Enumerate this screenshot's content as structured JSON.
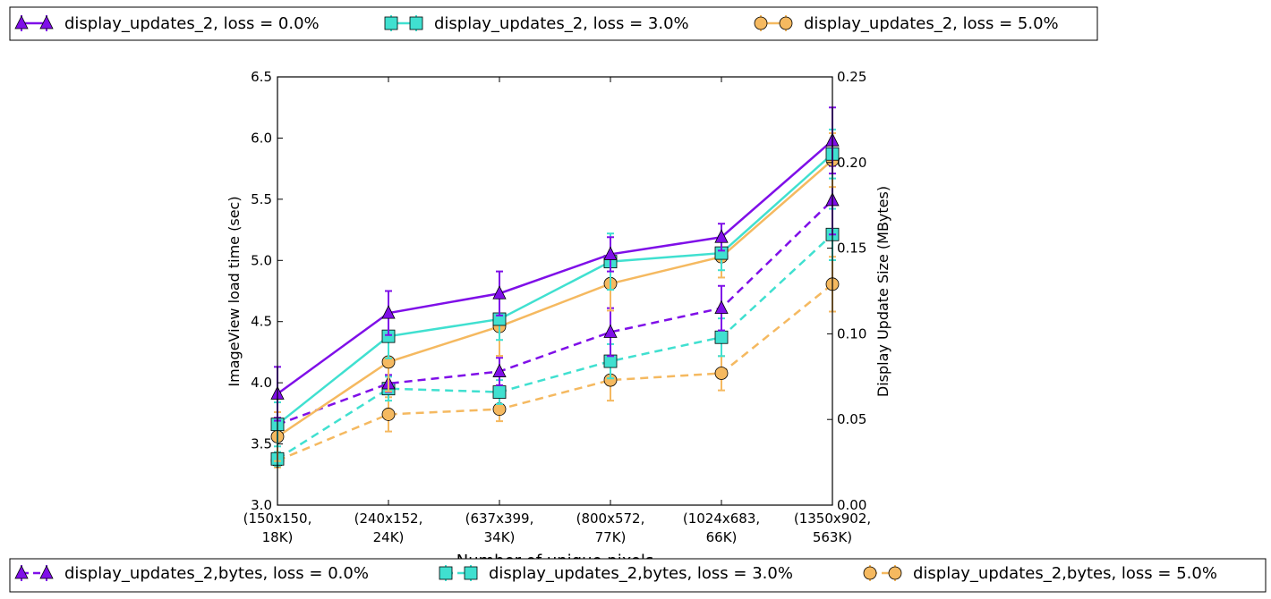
{
  "chart_data": {
    "type": "line",
    "xlabel": "Number of unique pixels",
    "ylabel_left": "ImageView load time (sec)",
    "ylabel_right": "Display Update Size (MBytes)",
    "categories": [
      [
        "(150x150,",
        "18K)"
      ],
      [
        "(240x152,",
        "24K)"
      ],
      [
        "(637x399,",
        "34K)"
      ],
      [
        "(800x572,",
        "77K)"
      ],
      [
        "(1024x683,",
        "66K)"
      ],
      [
        "(1350x902,",
        "563K)"
      ]
    ],
    "ylim_left": [
      3.0,
      6.5
    ],
    "yticks_left": [
      "3.0",
      "3.5",
      "4.0",
      "4.5",
      "5.0",
      "5.5",
      "6.0",
      "6.5"
    ],
    "ylim_right": [
      0.0,
      0.25
    ],
    "yticks_right": [
      "0.00",
      "0.05",
      "0.10",
      "0.15",
      "0.20",
      "0.25"
    ],
    "grid": false,
    "legend_top_position": "top",
    "legend_bottom_position": "bottom",
    "series": [
      {
        "name": "display_updates_2, loss = 0.0%",
        "axis": "left",
        "style": "solid",
        "marker": "triangle",
        "color": "#7f0fe8",
        "values": [
          3.91,
          4.57,
          4.73,
          5.05,
          5.19,
          5.98
        ],
        "errors": [
          0.22,
          0.18,
          0.18,
          0.14,
          0.11,
          0.27
        ]
      },
      {
        "name": "display_updates_2, loss = 3.0%",
        "axis": "left",
        "style": "solid",
        "marker": "square",
        "color": "#40e0d0",
        "values": [
          3.66,
          4.38,
          4.52,
          4.99,
          5.06,
          5.87
        ],
        "errors": [
          0.18,
          0.18,
          0.17,
          0.23,
          0.14,
          0.2
        ]
      },
      {
        "name": "display_updates_2, loss = 5.0%",
        "axis": "left",
        "style": "solid",
        "marker": "circle",
        "color": "#f5b960",
        "values": [
          3.56,
          4.17,
          4.46,
          4.81,
          5.03,
          5.82
        ],
        "errors": [
          0.2,
          0.24,
          0.24,
          0.22,
          0.17,
          0.22
        ]
      },
      {
        "name": "display_updates_2,bytes, loss = 0.0%",
        "axis": "right",
        "style": "dashed",
        "marker": "triangle",
        "color": "#7f0fe8",
        "values": [
          0.047,
          0.071,
          0.078,
          0.101,
          0.115,
          0.178
        ],
        "errors": [
          0.004,
          0.005,
          0.008,
          0.014,
          0.013,
          0.02
        ]
      },
      {
        "name": "display_updates_2,bytes, loss = 3.0%",
        "axis": "right",
        "style": "dashed",
        "marker": "square",
        "color": "#40e0d0",
        "values": [
          0.027,
          0.068,
          0.066,
          0.084,
          0.098,
          0.158
        ],
        "errors": [
          0.004,
          0.007,
          0.007,
          0.01,
          0.011,
          0.015
        ]
      },
      {
        "name": "display_updates_2,bytes, loss = 5.0%",
        "axis": "right",
        "style": "dashed",
        "marker": "circle",
        "color": "#f5b960",
        "values": [
          0.026,
          0.053,
          0.056,
          0.073,
          0.077,
          0.129
        ],
        "errors": [
          0.004,
          0.01,
          0.007,
          0.012,
          0.01,
          0.016
        ]
      }
    ]
  }
}
